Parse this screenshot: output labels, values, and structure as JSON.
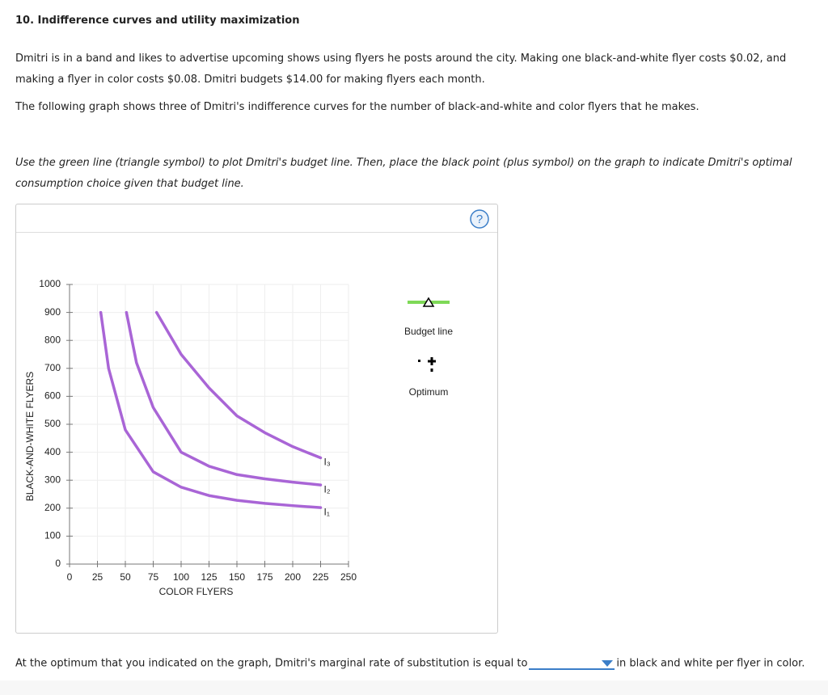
{
  "question": {
    "title": "10. Indifference curves and utility maximization",
    "paragraphs": [
      "Dmitri is in a band and likes to advertise upcoming shows using flyers he posts around the city. Making one black-and-white flyer costs $0.02, and making a flyer in color costs $0.08. Dmitri budgets $14.00 for making flyers each month.",
      "The following graph shows three of Dmitri's indifference curves for the number of black-and-white and color flyers that he makes."
    ],
    "instruction": "Use the green line (triangle symbol) to plot Dmitri's budget line. Then, place the black point (plus symbol) on the graph to indicate Dmitri's optimal consumption choice given that budget line."
  },
  "help_icon": "?",
  "chart_data": {
    "type": "line",
    "x_label": "COLOR FLYERS",
    "y_label": "BLACK-AND-WHITE FLYERS",
    "xlim": [
      0,
      250
    ],
    "ylim": [
      0,
      1000
    ],
    "xticks": [
      0,
      25,
      50,
      75,
      100,
      125,
      150,
      175,
      200,
      225,
      250
    ],
    "yticks": [
      0,
      100,
      200,
      300,
      400,
      500,
      600,
      700,
      800,
      900,
      1000
    ],
    "grid": true,
    "series": [
      {
        "name": "I₁",
        "color": "#a965d6",
        "x": [
          28,
          35,
          50,
          75,
          100,
          125,
          150,
          175,
          200,
          225
        ],
        "values": [
          900,
          700,
          480,
          330,
          275,
          245,
          228,
          217,
          209,
          202
        ]
      },
      {
        "name": "I₂",
        "color": "#a965d6",
        "x": [
          51,
          60,
          75,
          100,
          125,
          150,
          175,
          200,
          225
        ],
        "values": [
          900,
          720,
          560,
          400,
          350,
          320,
          305,
          293,
          283
        ]
      },
      {
        "name": "I₃",
        "color": "#a965d6",
        "x": [
          78,
          100,
          125,
          150,
          175,
          200,
          225
        ],
        "values": [
          900,
          750,
          630,
          530,
          470,
          420,
          380
        ]
      }
    ]
  },
  "legend": {
    "items": [
      {
        "label": "Budget line",
        "color": "#7ed957"
      },
      {
        "label": "Optimum",
        "color": "#000000"
      }
    ]
  },
  "answer": {
    "prompt": "At the optimum that you indicated on the graph, Dmitri's marginal rate of substitution is equal to",
    "suffix": "in black and white per flyer in color."
  }
}
